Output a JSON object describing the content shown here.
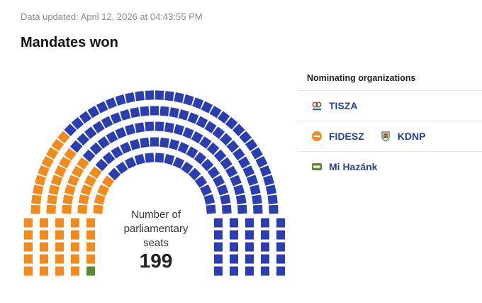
{
  "header": {
    "updated_text": "Data updated: April 12, 2026 at 04:43:55 PM",
    "title": "Mandates won"
  },
  "center": {
    "label": "Number of parliamentary seats",
    "total": "199"
  },
  "legend": {
    "heading": "Nominating organizations",
    "rows": [
      [
        {
          "name": "TISZA",
          "icon": "tisza-logo-icon",
          "color": "#2f55b5"
        }
      ],
      [
        {
          "name": "FIDESZ",
          "icon": "fidesz-logo-icon",
          "color": "#f28a1c"
        },
        {
          "name": "KDNP",
          "icon": "kdnp-logo-icon",
          "color": "#c8321e"
        }
      ],
      [
        {
          "name": "Mi Hazánk",
          "icon": "mi-hazank-logo-icon",
          "color": "#5a8a2e"
        }
      ]
    ]
  },
  "chart_data": {
    "type": "parliament",
    "total_seats": 199,
    "series": [
      {
        "name": "TISZA",
        "seats": 138,
        "color": "#2a3eb1"
      },
      {
        "name": "FIDESZ",
        "seats": 55,
        "color": "#f28a1c"
      },
      {
        "name": "Mi Hazánk",
        "seats": 6,
        "color": "#5a8a2e"
      }
    ]
  }
}
